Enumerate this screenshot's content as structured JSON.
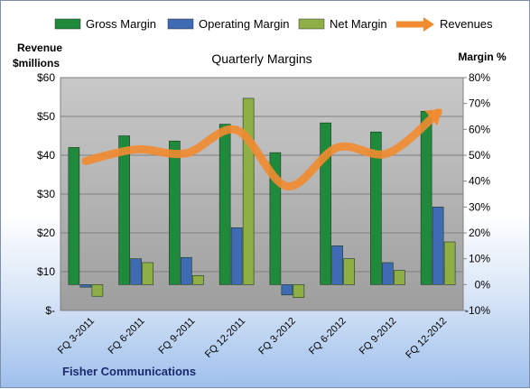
{
  "chart_data": {
    "type": "bar",
    "title": "Quarterly Margins",
    "y_left_label_line1": "Revenue",
    "y_left_label_line2": "$millions",
    "y_right_label": "Margin %",
    "footer": "Fisher Communications",
    "categories": [
      "FQ 3-2011",
      "FQ 6-2011",
      "FQ 9-2011",
      "FQ 12-2011",
      "FQ 3-2012",
      "FQ 6-2012",
      "FQ 9-2012",
      "FQ 12-2012"
    ],
    "y_left_ticks": [
      "$-",
      "$10",
      "$20",
      "$30",
      "$40",
      "$50",
      "$60"
    ],
    "y_left_range": [
      0,
      60
    ],
    "y_right_ticks": [
      "-10%",
      "0%",
      "10%",
      "20%",
      "30%",
      "40%",
      "50%",
      "60%",
      "70%",
      "80%"
    ],
    "y_right_range": [
      -10,
      80
    ],
    "legend_position": "top",
    "grid": true,
    "series": [
      {
        "name": "Gross Margin",
        "kind": "bar",
        "axis": "right",
        "color": "#1f8a3c",
        "values": [
          53,
          57.5,
          55.5,
          62,
          51,
          62.5,
          59,
          67
        ]
      },
      {
        "name": "Operating Margin",
        "kind": "bar",
        "axis": "right",
        "color": "#3f6bb5",
        "values": [
          -1,
          10,
          10.5,
          22,
          -4,
          15,
          8.5,
          30
        ]
      },
      {
        "name": "Net Margin",
        "kind": "bar",
        "axis": "right",
        "color": "#8fae45",
        "values": [
          -4.5,
          8.5,
          3.5,
          72,
          -5,
          10,
          5.5,
          16.5
        ]
      },
      {
        "name": "Revenues",
        "kind": "line",
        "axis": "left",
        "color": "#f28b30",
        "values": [
          38.5,
          41.5,
          40.5,
          46.5,
          32,
          42,
          40.5,
          51
        ]
      }
    ]
  }
}
